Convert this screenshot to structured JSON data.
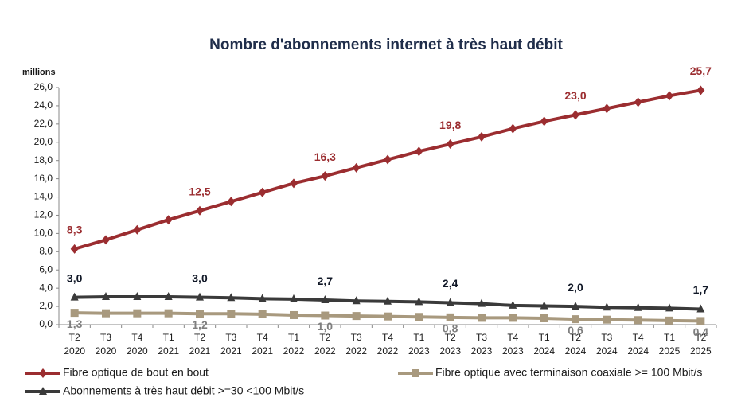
{
  "chart_data": {
    "type": "line",
    "title": "Nombre d'abonnements internet à très haut débit",
    "y_axis_label": "millions",
    "categories": [
      [
        "T2",
        "2020"
      ],
      [
        "T3",
        "2020"
      ],
      [
        "T4",
        "2020"
      ],
      [
        "T1",
        "2021"
      ],
      [
        "T2",
        "2021"
      ],
      [
        "T3",
        "2021"
      ],
      [
        "T4",
        "2021"
      ],
      [
        "T1",
        "2022"
      ],
      [
        "T2",
        "2022"
      ],
      [
        "T3",
        "2022"
      ],
      [
        "T4",
        "2022"
      ],
      [
        "T1",
        "2023"
      ],
      [
        "T2",
        "2023"
      ],
      [
        "T3",
        "2023"
      ],
      [
        "T4",
        "2023"
      ],
      [
        "T1",
        "2024"
      ],
      [
        "T2",
        "2024"
      ],
      [
        "T3",
        "2024"
      ],
      [
        "T4",
        "2024"
      ],
      [
        "T1",
        "2025"
      ],
      [
        "T2",
        "2025"
      ]
    ],
    "series": [
      {
        "name": "Fibre optique de bout en bout",
        "color": "#9b2d30",
        "marker": "diamond",
        "label_color": "#9b2d30",
        "label_side": "above",
        "values": [
          8.3,
          9.3,
          10.4,
          11.5,
          12.5,
          13.5,
          14.5,
          15.5,
          16.3,
          17.2,
          18.1,
          19.0,
          19.8,
          20.6,
          21.5,
          22.3,
          23.0,
          23.7,
          24.4,
          25.1,
          25.7
        ],
        "value_labels": [
          "8,3",
          null,
          null,
          null,
          "12,5",
          null,
          null,
          null,
          "16,3",
          null,
          null,
          null,
          "19,8",
          null,
          null,
          null,
          "23,0",
          null,
          null,
          null,
          "25,7"
        ]
      },
      {
        "name": "Fibre optique avec terminaison coaxiale >= 100 Mbit/s",
        "color": "#a8997e",
        "marker": "square",
        "label_color": "#7f7f7f",
        "label_side": "below",
        "values": [
          1.3,
          1.25,
          1.25,
          1.25,
          1.2,
          1.2,
          1.15,
          1.05,
          1.0,
          0.95,
          0.9,
          0.85,
          0.8,
          0.75,
          0.75,
          0.7,
          0.6,
          0.55,
          0.5,
          0.45,
          0.4
        ],
        "value_labels": [
          "1,3",
          null,
          null,
          null,
          "1,2",
          null,
          null,
          null,
          "1,0",
          null,
          null,
          null,
          "0,8",
          null,
          null,
          null,
          "0,6",
          null,
          null,
          null,
          "0,4"
        ]
      },
      {
        "name": "Abonnements à très haut débit >=30 <100 Mbit/s",
        "color": "#3a3a3a",
        "marker": "triangle",
        "label_color": "#111827",
        "label_side": "above",
        "values": [
          3.0,
          3.05,
          3.05,
          3.05,
          3.0,
          2.95,
          2.85,
          2.8,
          2.7,
          2.6,
          2.55,
          2.5,
          2.4,
          2.3,
          2.1,
          2.05,
          2.0,
          1.9,
          1.85,
          1.8,
          1.7
        ],
        "value_labels": [
          "3,0",
          null,
          null,
          null,
          "3,0",
          null,
          null,
          null,
          "2,7",
          null,
          null,
          null,
          "2,4",
          null,
          null,
          null,
          "2,0",
          null,
          null,
          null,
          "1,7"
        ]
      }
    ],
    "ylim": [
      0,
      26
    ],
    "yticks": [
      {
        "value": 0,
        "label": "0,0"
      },
      {
        "value": 2,
        "label": "2,0"
      },
      {
        "value": 4,
        "label": "4,0"
      },
      {
        "value": 6,
        "label": "6,0"
      },
      {
        "value": 8,
        "label": "8,0"
      },
      {
        "value": 10,
        "label": "10,0"
      },
      {
        "value": 12,
        "label": "12,0"
      },
      {
        "value": 14,
        "label": "14,0"
      },
      {
        "value": 16,
        "label": "16,0"
      },
      {
        "value": 18,
        "label": "18,0"
      },
      {
        "value": 20,
        "label": "20,0"
      },
      {
        "value": 22,
        "label": "22,0"
      },
      {
        "value": 24,
        "label": "24,0"
      },
      {
        "value": 26,
        "label": "26,0"
      }
    ],
    "grid": false
  }
}
